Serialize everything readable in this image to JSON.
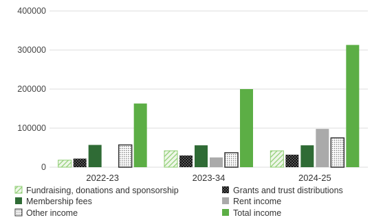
{
  "chart_data": {
    "type": "bar",
    "categories": [
      "2022-23",
      "2023-34",
      "2024-25"
    ],
    "ylim": [
      0,
      400000
    ],
    "yticks": [
      "0",
      "100000",
      "200000",
      "300000",
      "400000"
    ],
    "grid": true,
    "legend_position": "bottom",
    "series": [
      {
        "name": "Fundraising, donations and sponsorship",
        "values": [
          18000,
          42000,
          42000
        ],
        "color": "#a8d890",
        "pattern": "diagonal-hatch"
      },
      {
        "name": "Grants and trust distributions",
        "values": [
          22000,
          30000,
          32000
        ],
        "color": "#111111",
        "pattern": "checker"
      },
      {
        "name": "Membership fees",
        "values": [
          57000,
          56000,
          56000
        ],
        "color": "#2f6b35",
        "pattern": "solid"
      },
      {
        "name": "Rent income",
        "values": [
          0,
          25000,
          98000
        ],
        "color": "#aaaaaa",
        "pattern": "solid"
      },
      {
        "name": "Other income",
        "values": [
          57000,
          37000,
          75000
        ],
        "color": "#ffffff",
        "pattern": "dots"
      },
      {
        "name": "Total income",
        "values": [
          163000,
          200000,
          313000
        ],
        "color": "#5cae45",
        "pattern": "solid"
      }
    ]
  }
}
